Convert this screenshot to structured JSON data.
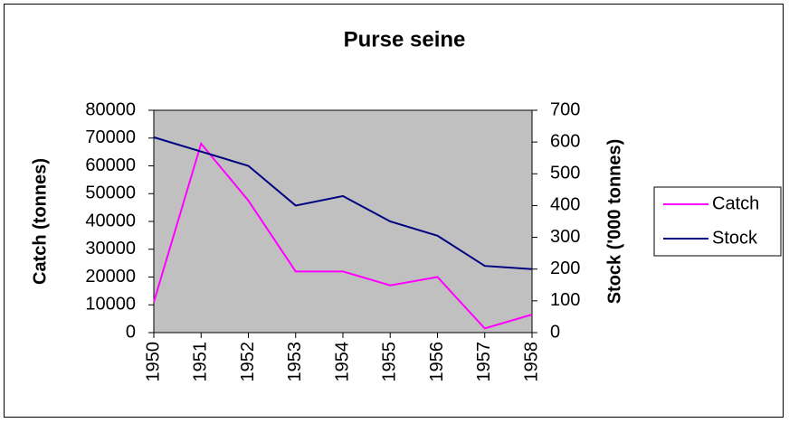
{
  "chart_data": {
    "type": "line",
    "title": "Purse seine",
    "y_label": "Catch (tonnes)",
    "y2_label": "Stock ('000 tonnes)",
    "x": [
      1950,
      1951,
      1952,
      1953,
      1954,
      1955,
      1956,
      1957,
      1958
    ],
    "xlim": [
      1950,
      1958
    ],
    "series": [
      {
        "name": "Catch",
        "color": "#ff00ff",
        "values": [
          11000,
          68000,
          47500,
          22000,
          22000,
          17000,
          20000,
          1500,
          6500
        ]
      },
      {
        "name": "Stock",
        "color": "#000080",
        "axis": "y2",
        "values": [
          615,
          570,
          525,
          400,
          430,
          350,
          305,
          210,
          200
        ]
      }
    ],
    "ylim": [
      0,
      80000
    ],
    "yticks": [
      0,
      10000,
      20000,
      30000,
      40000,
      50000,
      60000,
      70000,
      80000
    ],
    "y2lim": [
      0,
      700
    ],
    "y2ticks": [
      0,
      100,
      200,
      300,
      400,
      500,
      600,
      700
    ],
    "plot_background": "#c0c0c0",
    "legend": "right",
    "grid": false
  }
}
